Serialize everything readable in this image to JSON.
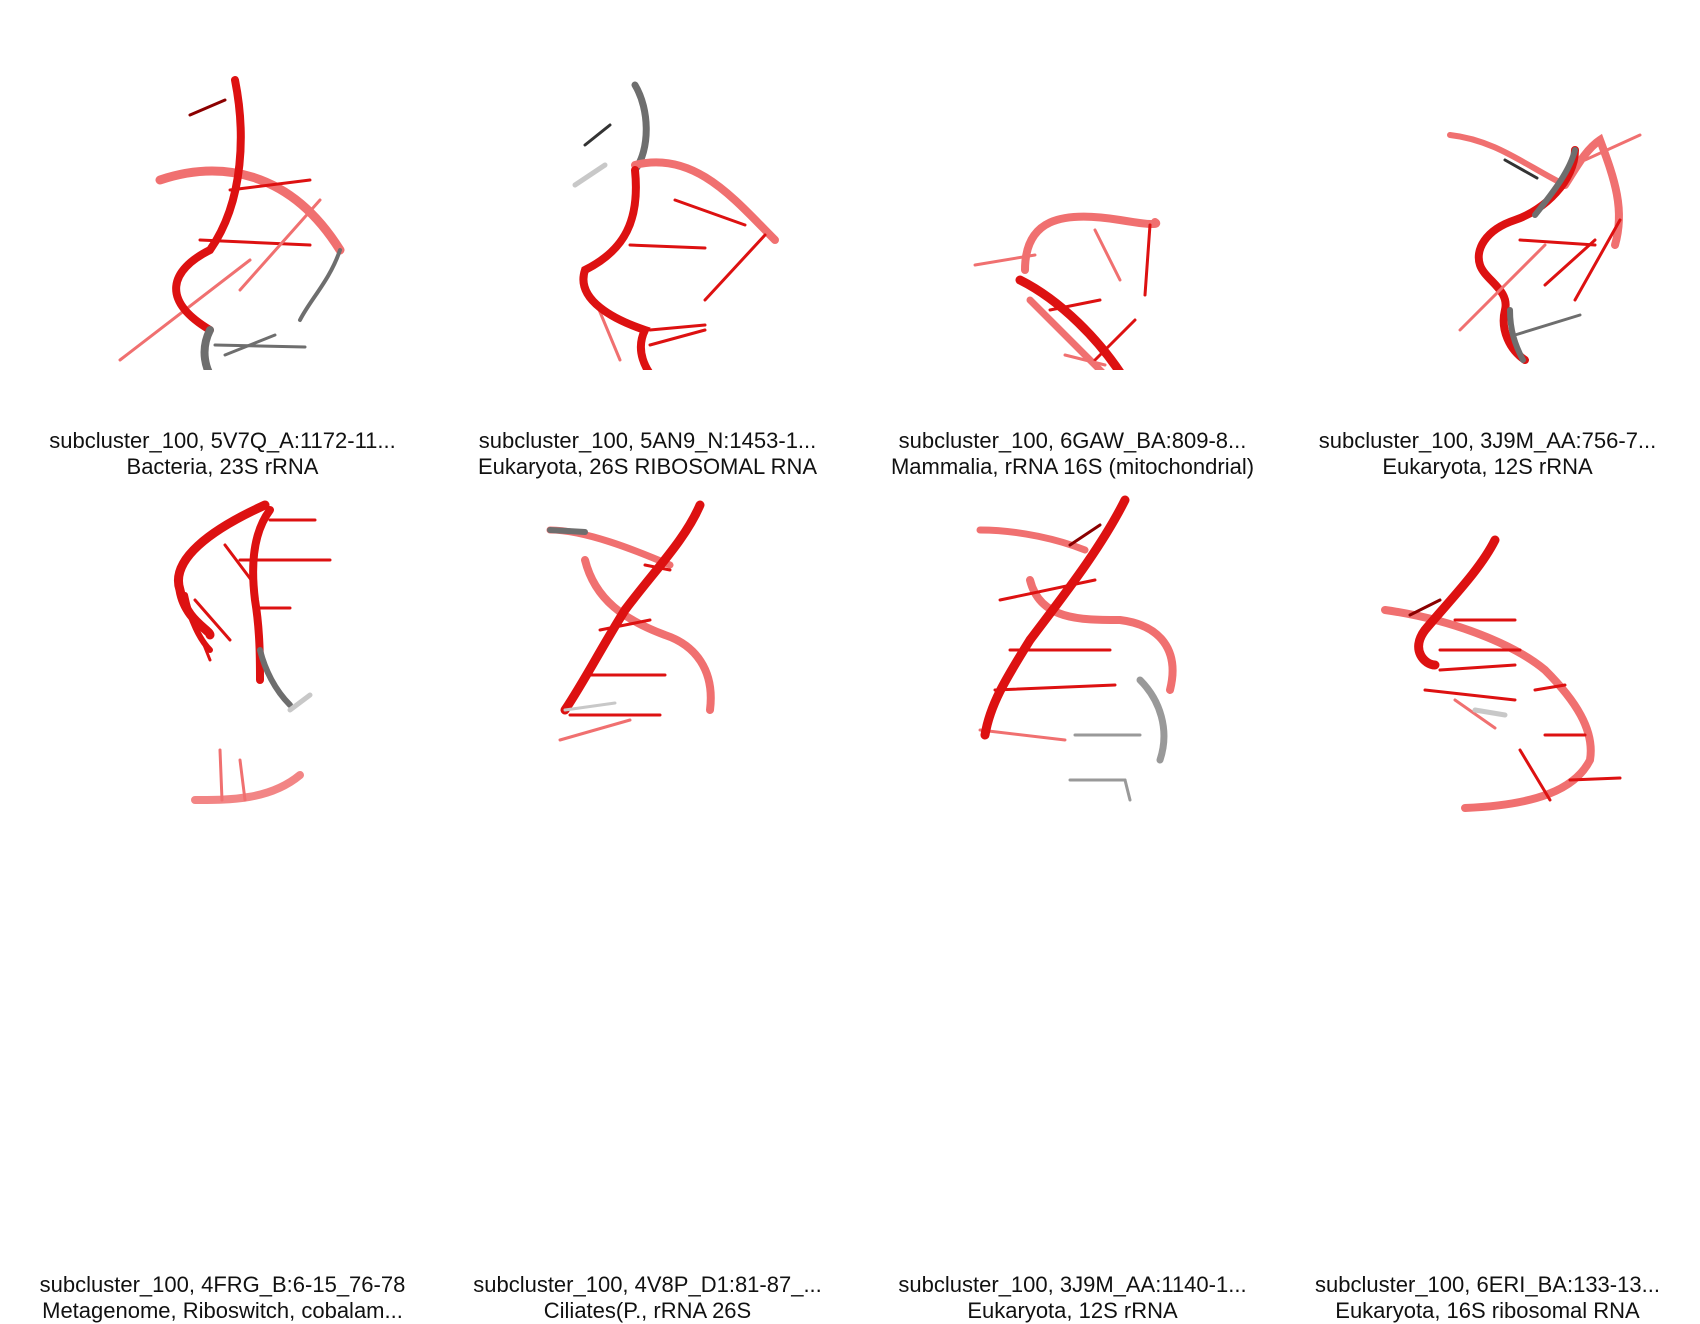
{
  "panels": [
    {
      "title": "subcluster_100, 5V7Q_A:1172-11...",
      "subtitle": "Bacteria, 23S rRNA"
    },
    {
      "title": "subcluster_100, 5AN9_N:1453-1...",
      "subtitle": "Eukaryota, 26S RIBOSOMAL RNA"
    },
    {
      "title": "subcluster_100, 6GAW_BA:809-8...",
      "subtitle": "Mammalia, rRNA 16S (mitochondrial)"
    },
    {
      "title": "subcluster_100, 3J9M_AA:756-7...",
      "subtitle": "Eukaryota, 12S rRNA"
    },
    {
      "title": "subcluster_100, 4FRG_B:6-15_76-78",
      "subtitle": "Metagenome, Riboswitch, cobalam..."
    },
    {
      "title": "subcluster_100, 4V8P_D1:81-87_...",
      "subtitle": "Ciliates(P., rRNA 26S"
    },
    {
      "title": "subcluster_100, 3J9M_AA:1140-1...",
      "subtitle": "Eukaryota, 12S rRNA"
    },
    {
      "title": "subcluster_100, 6ERI_BA:133-13...",
      "subtitle": "Eukaryota, 16S ribosomal RNA"
    }
  ],
  "colors": {
    "red": "#dd1111",
    "dark_red": "#8b0000",
    "light_red": "#f07070",
    "gray": "#6e6e6e",
    "light_gray": "#c8c8c8"
  }
}
